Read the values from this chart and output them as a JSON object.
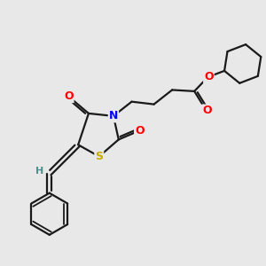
{
  "background_color": "#e8e8e8",
  "bond_color": "#1a1a1a",
  "bond_width": 1.6,
  "atom_colors": {
    "O": "#ff0000",
    "N": "#0000ff",
    "S": "#ccaa00",
    "H_label": "#4a9090",
    "C": "#1a1a1a"
  },
  "font_size_atom": 9,
  "figure_size": [
    3.0,
    3.0
  ],
  "dpi": 100,
  "xlim": [
    0,
    10
  ],
  "ylim": [
    0,
    10
  ]
}
